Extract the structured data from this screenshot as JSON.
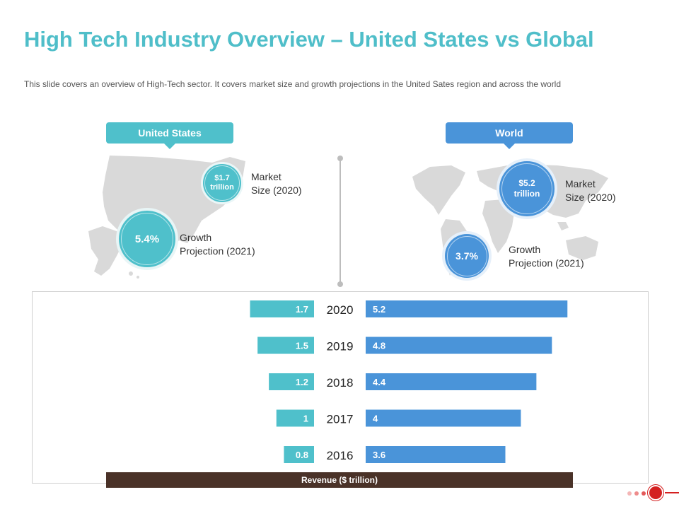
{
  "title": "High Tech Industry Overview – United States vs Global",
  "subtitle": "This slide covers  an overview  of High-Tech  sector. It covers  market size and growth  projections in the United Sates region  and across the world",
  "united_states": {
    "label": "United States",
    "market_size_value_line1": "$1.7",
    "market_size_value_line2": "trillion",
    "market_size_label_line1": "Market",
    "market_size_label_line2": "Size (2020)",
    "growth_value": "5.4%",
    "growth_label_line1": "Growth",
    "growth_label_line2": "Projection (2021)"
  },
  "world": {
    "label": "World",
    "market_size_value_line1": "$5.2",
    "market_size_value_line2": "trillion",
    "market_size_label_line1": "Market",
    "market_size_label_line2": "Size (2020)",
    "growth_value": "3.7%",
    "growth_label_line1": "Growth",
    "growth_label_line2": "Projection (2021)"
  },
  "colors": {
    "title": "#4fbec9",
    "us": "#4fc0cb",
    "world": "#4a94d9",
    "axis_bar": "#4a3228",
    "map": "#d9d9d9"
  },
  "chart_data": {
    "type": "bar",
    "orientation": "horizontal-butterfly",
    "categories": [
      "2020",
      "2019",
      "2018",
      "2017",
      "2016"
    ],
    "series": [
      {
        "name": "United States",
        "values": [
          1.7,
          1.5,
          1.2,
          1,
          0.8
        ],
        "labels": [
          "1.7",
          "1.5",
          "1.2",
          "1",
          "0.8"
        ]
      },
      {
        "name": "World",
        "values": [
          5.2,
          4.8,
          4.4,
          4,
          3.6
        ],
        "labels": [
          "5.2",
          "4.8",
          "4.4",
          "4",
          "3.6"
        ]
      }
    ],
    "xlabel": "Revenue ($ trillion)",
    "xlim_left": [
      0,
      6.5
    ],
    "xlim_right": [
      0,
      7.0
    ]
  }
}
